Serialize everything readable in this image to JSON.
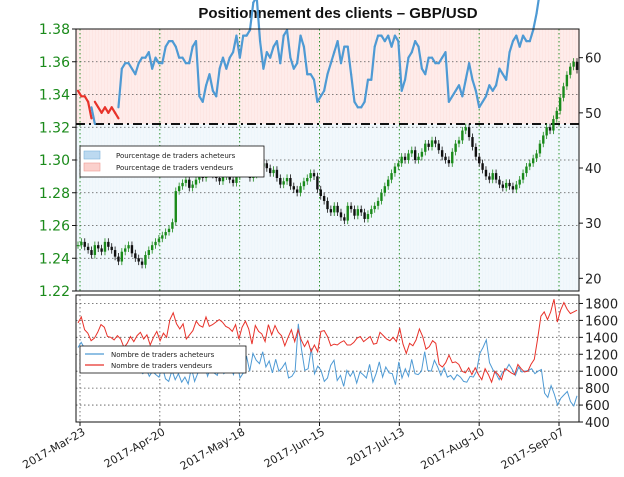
{
  "chart_data": [
    {
      "type": "line",
      "title": "Positionnement des clients – GBP/USD",
      "price_axis": {
        "side": "left",
        "ticks": [
          "1.38",
          "1.36",
          "1.34",
          "1.32",
          "1.30",
          "1.28",
          "1.26",
          "1.24",
          "1.22"
        ],
        "ylim": [
          1.22,
          1.38
        ],
        "color": "#1a8a1a"
      },
      "percent_axis": {
        "side": "right",
        "ticks": [
          "60",
          "50",
          "40",
          "30",
          "20"
        ],
        "ylim": [
          17.7,
          65.2
        ]
      },
      "x_ticks": [
        "2017-Mar-23",
        "2017-Apr-20",
        "2017-May-18",
        "2017-Jun-15",
        "2017-Jul-13",
        "2017-Aug-10",
        "2017-Sep-07"
      ],
      "reference_line_percent": 50,
      "legend": {
        "placement": "upper-left",
        "entries": [
          "Pourcentage de traders acheteurs",
          "Pourcentage de traders vendeurs"
        ]
      },
      "grid": true,
      "series": [
        {
          "name": "Pourcentage de traders vendeurs",
          "color": "#e8322a",
          "note": "drawn red where sellers are the majority",
          "values": [
            54,
            53,
            53,
            52,
            49,
            52,
            51,
            50,
            51,
            50,
            51,
            50,
            49,
            42,
            41,
            41,
            42,
            43,
            41,
            40,
            40,
            39,
            42,
            40,
            41,
            41,
            38,
            37,
            37,
            38,
            40,
            40,
            41,
            41,
            38,
            37,
            47,
            48,
            45,
            43,
            46,
            47,
            42,
            40,
            42,
            40,
            39,
            36,
            40,
            36,
            36,
            35,
            30,
            29,
            37,
            42,
            39,
            40,
            38,
            37,
            41,
            36,
            35,
            40,
            42,
            41,
            36,
            38,
            43,
            43,
            44,
            48,
            47,
            46,
            43,
            41,
            39,
            37,
            41,
            38,
            38,
            43,
            48,
            49,
            49,
            48,
            44,
            44,
            38,
            36,
            36,
            37,
            36,
            38,
            36,
            37,
            46,
            44,
            40,
            39,
            37,
            38,
            42,
            43,
            40,
            40,
            41,
            41,
            40,
            39,
            48,
            47,
            46,
            45,
            47,
            44,
            41,
            44,
            46,
            49,
            48,
            47,
            45,
            46,
            45,
            42,
            43,
            44,
            39,
            37,
            36,
            38,
            36,
            37,
            37,
            35,
            32,
            28,
            25,
            23,
            24,
            29,
            29,
            25,
            23,
            25,
            27,
            28,
            29
          ]
        },
        {
          "name": "Pourcentage de traders acheteurs",
          "color": "#4e9ad4",
          "note": "drawn blue where buyers are the majority",
          "values": [
            46,
            47,
            47,
            48,
            51,
            48,
            49,
            50,
            49,
            50,
            49,
            50,
            51,
            58,
            59,
            59,
            58,
            57,
            59,
            60,
            60,
            61,
            58,
            60,
            59,
            59,
            62,
            63,
            63,
            62,
            60,
            60,
            59,
            59,
            62,
            63,
            53,
            52,
            55,
            57,
            54,
            53,
            58,
            60,
            58,
            60,
            61,
            64,
            60,
            64,
            64,
            65,
            70,
            71,
            63,
            58,
            61,
            60,
            62,
            63,
            59,
            64,
            65,
            60,
            58,
            59,
            64,
            62,
            57,
            57,
            56,
            52,
            53,
            54,
            57,
            59,
            61,
            63,
            59,
            62,
            62,
            57,
            52,
            51,
            51,
            52,
            56,
            56,
            62,
            64,
            64,
            63,
            64,
            62,
            64,
            63,
            54,
            56,
            60,
            61,
            63,
            62,
            58,
            57,
            60,
            60,
            59,
            59,
            60,
            61,
            52,
            53,
            54,
            55,
            53,
            56,
            59,
            56,
            54,
            51,
            52,
            53,
            55,
            54,
            55,
            58,
            57,
            56,
            61,
            63,
            64,
            62,
            64,
            63,
            63,
            65,
            68,
            72,
            75,
            77,
            76,
            71,
            71,
            75,
            77,
            75,
            73,
            72,
            71
          ]
        },
        {
          "name": "GBP/USD",
          "type": "candlestick",
          "color_up": "#1a8a1a",
          "color_down": "#111111",
          "close": [
            1.248,
            1.25,
            1.247,
            1.245,
            1.242,
            1.248,
            1.246,
            1.244,
            1.25,
            1.247,
            1.245,
            1.241,
            1.238,
            1.244,
            1.246,
            1.248,
            1.243,
            1.24,
            1.238,
            1.236,
            1.242,
            1.245,
            1.248,
            1.25,
            1.252,
            1.254,
            1.256,
            1.258,
            1.262,
            1.281,
            1.284,
            1.286,
            1.288,
            1.283,
            1.285,
            1.288,
            1.29,
            1.289,
            1.292,
            1.294,
            1.291,
            1.289,
            1.287,
            1.29,
            1.292,
            1.288,
            1.286,
            1.29,
            1.294,
            1.296,
            1.292,
            1.289,
            1.291,
            1.294,
            1.296,
            1.298,
            1.295,
            1.292,
            1.294,
            1.289,
            1.285,
            1.287,
            1.289,
            1.284,
            1.282,
            1.28,
            1.284,
            1.287,
            1.289,
            1.292,
            1.29,
            1.282,
            1.278,
            1.275,
            1.27,
            1.268,
            1.272,
            1.268,
            1.265,
            1.263,
            1.272,
            1.27,
            1.266,
            1.27,
            1.268,
            1.264,
            1.267,
            1.27,
            1.272,
            1.275,
            1.28,
            1.284,
            1.288,
            1.292,
            1.296,
            1.298,
            1.302,
            1.3,
            1.304,
            1.306,
            1.3,
            1.302,
            1.305,
            1.31,
            1.308,
            1.312,
            1.31,
            1.306,
            1.302,
            1.3,
            1.298,
            1.305,
            1.31,
            1.312,
            1.318,
            1.32,
            1.314,
            1.308,
            1.302,
            1.298,
            1.294,
            1.29,
            1.288,
            1.292,
            1.288,
            1.285,
            1.283,
            1.286,
            1.284,
            1.282,
            1.285,
            1.288,
            1.292,
            1.296,
            1.298,
            1.301,
            1.304,
            1.31,
            1.315,
            1.32,
            1.318,
            1.325,
            1.33,
            1.338,
            1.345,
            1.352,
            1.357,
            1.36,
            1.355
          ]
        }
      ]
    },
    {
      "type": "line",
      "y_axis": {
        "side": "right",
        "ticks": [
          "1800",
          "1600",
          "1400",
          "1200",
          "1000",
          "800",
          "600",
          "400"
        ],
        "ylim": [
          400,
          1900
        ]
      },
      "x_ticks": [
        "2017-Mar-23",
        "2017-Apr-20",
        "2017-May-18",
        "2017-Jun-15",
        "2017-Jul-13",
        "2017-Aug-10",
        "2017-Sep-07"
      ],
      "legend": {
        "placement": "upper-left",
        "entries": [
          "Nombre de traders acheteurs",
          "Nombre de traders vendeurs"
        ]
      },
      "grid": true,
      "series": [
        {
          "name": "Nombre de traders acheteurs",
          "color": "#4e9ad4",
          "values": [
            1280,
            1340,
            1270,
            1230,
            1130,
            1290,
            1260,
            1210,
            1180,
            1150,
            1090,
            1220,
            1180,
            1110,
            1120,
            1080,
            1050,
            1090,
            1100,
            1010,
            970,
            1030,
            940,
            1000,
            960,
            930,
            1060,
            910,
            880,
            1010,
            900,
            970,
            870,
            930,
            850,
            1040,
            880,
            980,
            1050,
            1080,
            940,
            1060,
            980,
            950,
            1100,
            970,
            1010,
            1040,
            960,
            1130,
            920,
            980,
            1180,
            1000,
            1210,
            1130,
            1090,
            1230,
            1050,
            1120,
            980,
            1140,
            1000,
            1040,
            1100,
            920,
            940,
            1000,
            1560,
            1250,
            1010,
            1030,
            1270,
            970,
            1060,
            1010,
            880,
            920,
            1070,
            1130,
            890,
            950,
            820,
            1010,
            940,
            1000,
            860,
            990,
            960,
            920,
            1080,
            870,
            970,
            1110,
            930,
            1050,
            980,
            970,
            840,
            1110,
            920,
            1030,
            940,
            1140,
            970,
            960,
            1000,
            1230,
            1010,
            1000,
            1130,
            1050,
            950,
            1040,
            930,
            950,
            900,
            960,
            930,
            880,
            870,
            940,
            930,
            1000,
            1210,
            1280,
            1370,
            1100,
            1020,
            970,
            900,
            990,
            1010,
            1080,
            1020,
            950,
            1050,
            990,
            1000,
            1010,
            1030,
            970,
            1000,
            1020,
            740,
            690,
            830,
            730,
            600,
            680,
            720,
            760,
            640,
            590,
            710
          ]
        },
        {
          "name": "Nombre de traders vendeurs",
          "color": "#e8322a",
          "values": [
            1570,
            1640,
            1490,
            1450,
            1360,
            1390,
            1460,
            1550,
            1520,
            1410,
            1400,
            1370,
            1420,
            1380,
            1280,
            1330,
            1410,
            1350,
            1420,
            1460,
            1380,
            1430,
            1310,
            1400,
            1470,
            1360,
            1450,
            1400,
            1610,
            1690,
            1560,
            1500,
            1560,
            1380,
            1430,
            1480,
            1590,
            1540,
            1520,
            1640,
            1530,
            1550,
            1580,
            1610,
            1580,
            1530,
            1510,
            1470,
            1550,
            1380,
            1520,
            1590,
            1500,
            1320,
            1540,
            1470,
            1440,
            1350,
            1550,
            1430,
            1540,
            1460,
            1420,
            1300,
            1400,
            1490,
            1350,
            1490,
            1370,
            1290,
            1360,
            1230,
            1310,
            1230,
            1470,
            1480,
            1410,
            1300,
            1320,
            1310,
            1340,
            1360,
            1310,
            1310,
            1340,
            1390,
            1410,
            1350,
            1380,
            1410,
            1320,
            1330,
            1460,
            1420,
            1380,
            1360,
            1400,
            1350,
            1510,
            1320,
            1210,
            1330,
            1300,
            1370,
            1500,
            1410,
            1260,
            1290,
            1360,
            1330,
            1080,
            1050,
            1100,
            1190,
            1100,
            1110,
            1080,
            1000,
            980,
            1040,
            960,
            1040,
            960,
            900,
            1030,
            960,
            870,
            1000,
            960,
            900,
            1030,
            1010,
            980,
            960,
            1080,
            1030,
            990,
            1000,
            1080,
            1140,
            1380,
            1650,
            1700,
            1610,
            1700,
            1850,
            1580,
            1720,
            1810,
            1730,
            1680,
            1700,
            1720
          ]
        }
      ]
    }
  ]
}
